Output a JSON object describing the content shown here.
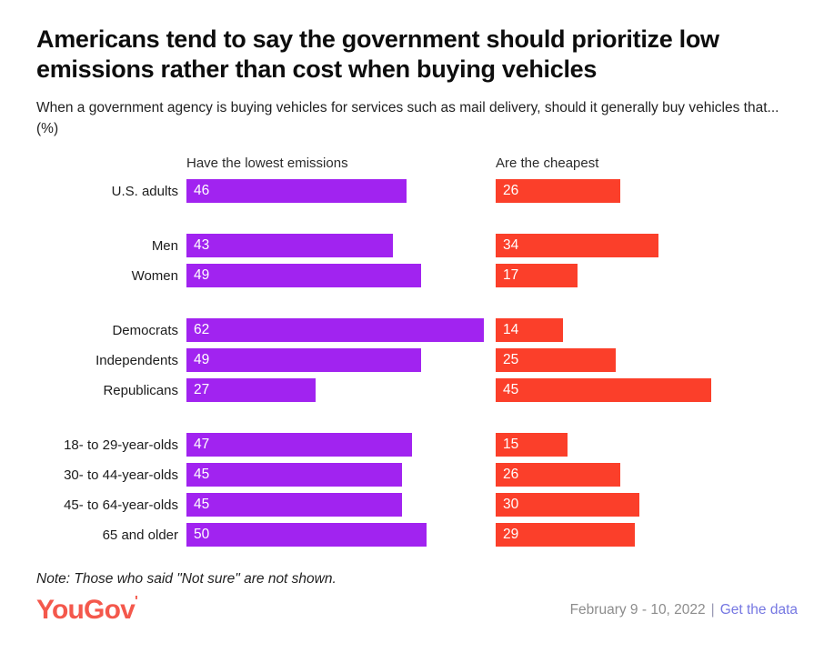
{
  "header": {
    "title": "Americans tend to say the government should prioritize low emissions rather than cost when buying vehicles",
    "subtitle": "When a government agency is buying vehicles for services such as mail delivery, should it generally buy vehicles that...(%)"
  },
  "chart_data": {
    "type": "bar",
    "orientation": "horizontal",
    "unit": "%",
    "value_range": [
      0,
      65
    ],
    "grid": false,
    "legend_position": "column-headers",
    "series": [
      {
        "name": "Have the lowest emissions",
        "color": "#A123F0"
      },
      {
        "name": "Are the cheapest",
        "color": "#FB3F2A"
      }
    ],
    "groups": [
      {
        "rows": [
          {
            "label": "U.S. adults",
            "values": [
              46,
              26
            ]
          }
        ]
      },
      {
        "rows": [
          {
            "label": "Men",
            "values": [
              43,
              34
            ]
          },
          {
            "label": "Women",
            "values": [
              49,
              17
            ]
          }
        ]
      },
      {
        "rows": [
          {
            "label": "Democrats",
            "values": [
              62,
              14
            ]
          },
          {
            "label": "Independents",
            "values": [
              49,
              25
            ]
          },
          {
            "label": "Republicans",
            "values": [
              27,
              45
            ]
          }
        ]
      },
      {
        "rows": [
          {
            "label": "18- to 29-year-olds",
            "values": [
              47,
              15
            ]
          },
          {
            "label": "30- to 44-year-olds",
            "values": [
              45,
              26
            ]
          },
          {
            "label": "45- to 64-year-olds",
            "values": [
              45,
              30
            ]
          },
          {
            "label": "65 and older",
            "values": [
              50,
              29
            ]
          }
        ]
      }
    ]
  },
  "footer": {
    "note": "Note: Those who said \"Not sure\" are not shown.",
    "logo_text": "YouGov",
    "logo_tick": "'",
    "logo_color": "#F4584C",
    "date_range": "February 9 - 10, 2022",
    "separator": "|",
    "link_label": "Get the data",
    "link_color": "#7577E2"
  }
}
